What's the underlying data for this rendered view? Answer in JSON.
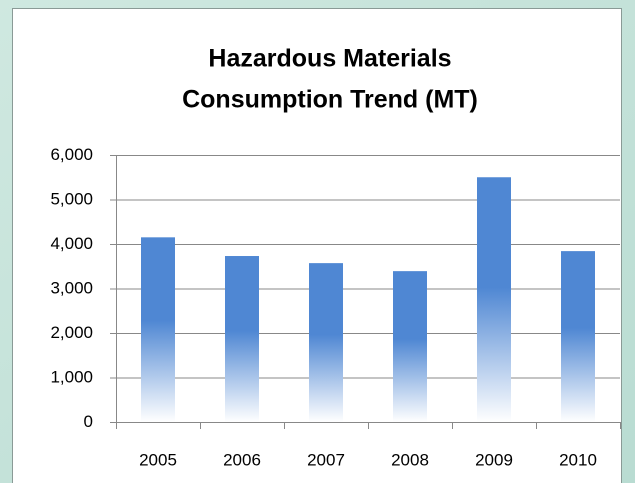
{
  "chart_data": {
    "type": "bar",
    "title": [
      "Hazardous Materials",
      "Consumption Trend (MT)"
    ],
    "categories": [
      "2005",
      "2006",
      "2007",
      "2008",
      "2009",
      "2010"
    ],
    "values": [
      4150,
      3730,
      3570,
      3390,
      5500,
      3840
    ],
    "color": "#4f87d3",
    "ylim": [
      0,
      6000
    ],
    "yticks": [
      0,
      {
        "value": 1000,
        "label": "1,000"
      },
      {
        "value": 2000,
        "label": "2,000"
      },
      {
        "value": 3000,
        "label": "3,000"
      },
      {
        "value": 4000,
        "label": "4,000"
      },
      {
        "value": 5000,
        "label": "5,000"
      },
      {
        "value": 6000,
        "label": "6,000"
      }
    ],
    "grid": true
  }
}
